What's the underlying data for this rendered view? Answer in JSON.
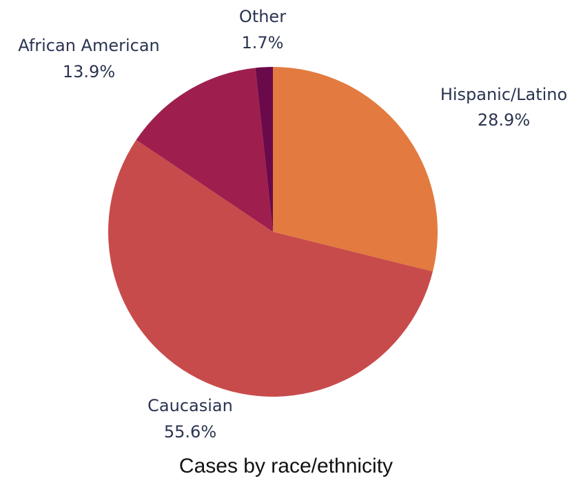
{
  "chart_data": {
    "type": "pie",
    "title": "Cases by race/ethnicity",
    "slices": [
      {
        "label": "Hispanic/Latino",
        "value": 28.9,
        "value_label": "28.9%",
        "color": "#e37a3f"
      },
      {
        "label": "Caucasian",
        "value": 55.6,
        "value_label": "55.6%",
        "color": "#c84b4b"
      },
      {
        "label": "African American",
        "value": 13.9,
        "value_label": "13.9%",
        "color": "#9e1f4e"
      },
      {
        "label": "Other",
        "value": 1.7,
        "value_label": "1.7%",
        "color": "#6b0a4a"
      }
    ],
    "start_angle": "12 o'clock",
    "direction": "clockwise"
  }
}
